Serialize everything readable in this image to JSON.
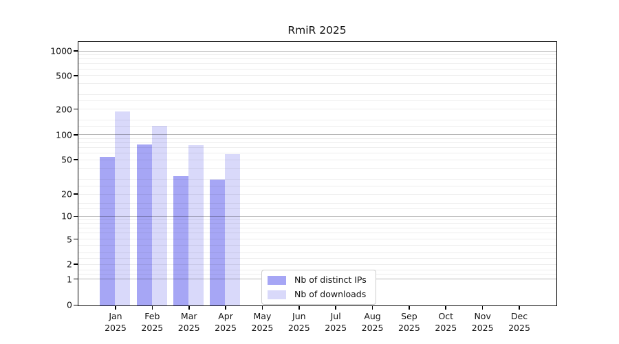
{
  "chart_data": {
    "type": "bar",
    "title": "RmiR 2025",
    "categories": [
      "Jan",
      "Feb",
      "Mar",
      "Apr",
      "May",
      "Jun",
      "Jul",
      "Aug",
      "Sep",
      "Oct",
      "Nov",
      "Dec"
    ],
    "category_year": "2025",
    "series": [
      {
        "name": "Nb of distinct IPs",
        "hex_over_white": "#a6a6f4",
        "fill": "rgba(118,118,240,0.65)",
        "values": [
          55,
          78,
          33,
          30,
          0,
          0,
          0,
          0,
          0,
          0,
          0,
          0
        ]
      },
      {
        "name": "Nb of downloads",
        "hex_over_white": "#d9d9fa",
        "fill": "rgba(164,164,243,0.42)",
        "values": [
          190,
          128,
          76,
          59,
          0,
          0,
          0,
          0,
          0,
          0,
          0,
          0
        ]
      }
    ],
    "yticks": [
      0,
      1,
      2,
      5,
      10,
      20,
      50,
      100,
      200,
      500,
      1000
    ],
    "ylim": [
      0,
      1000
    ],
    "yscale": "log-like",
    "xlabel": "",
    "ylabel": "",
    "grid": true,
    "gridline_minor_color": "#ececec",
    "gridline_major_color": "#b5b5b5",
    "axis_color": "#000000",
    "background_color": "#ffffff",
    "legend_position": "bottom-center"
  }
}
